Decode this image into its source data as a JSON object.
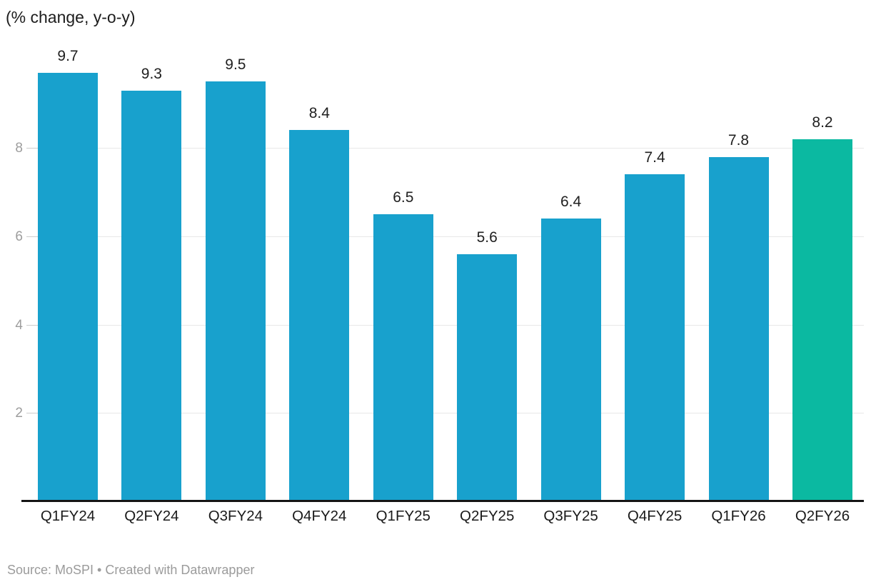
{
  "header": {
    "title": "(% change, y-o-y)"
  },
  "footer": {
    "source_note": "Source: MoSPI • Created with Datawrapper"
  },
  "chart_data": {
    "type": "bar",
    "title": "(% change, y-o-y)",
    "categories": [
      "Q1FY24",
      "Q2FY24",
      "Q3FY24",
      "Q4FY24",
      "Q1FY25",
      "Q2FY25",
      "Q3FY25",
      "Q4FY25",
      "Q1FY26",
      "Q2FY26"
    ],
    "values": [
      9.7,
      9.3,
      9.5,
      8.4,
      6.5,
      5.6,
      6.4,
      7.4,
      7.8,
      8.2
    ],
    "value_labels": [
      "9.7",
      "9.3",
      "9.5",
      "8.4",
      "6.5",
      "5.6",
      "6.4",
      "7.4",
      "7.8",
      "8.2"
    ],
    "highlight_category": "Q2FY26",
    "y_ticks": [
      2,
      4,
      6,
      8
    ],
    "ylim": [
      0,
      9.7
    ],
    "grid": true,
    "legend": "none",
    "xlabel": "",
    "ylabel": "",
    "colors": {
      "bar": "#18A1CD",
      "highlight": "#0BB9A1",
      "grid": "#E8E8E8",
      "tick": "#CCCCCC",
      "axis_line": "#151515",
      "value_label": "#1F1F1F",
      "category_label": "#1A1A1A",
      "tick_label": "#9D9D9D",
      "source": "#9B9B9B"
    }
  }
}
